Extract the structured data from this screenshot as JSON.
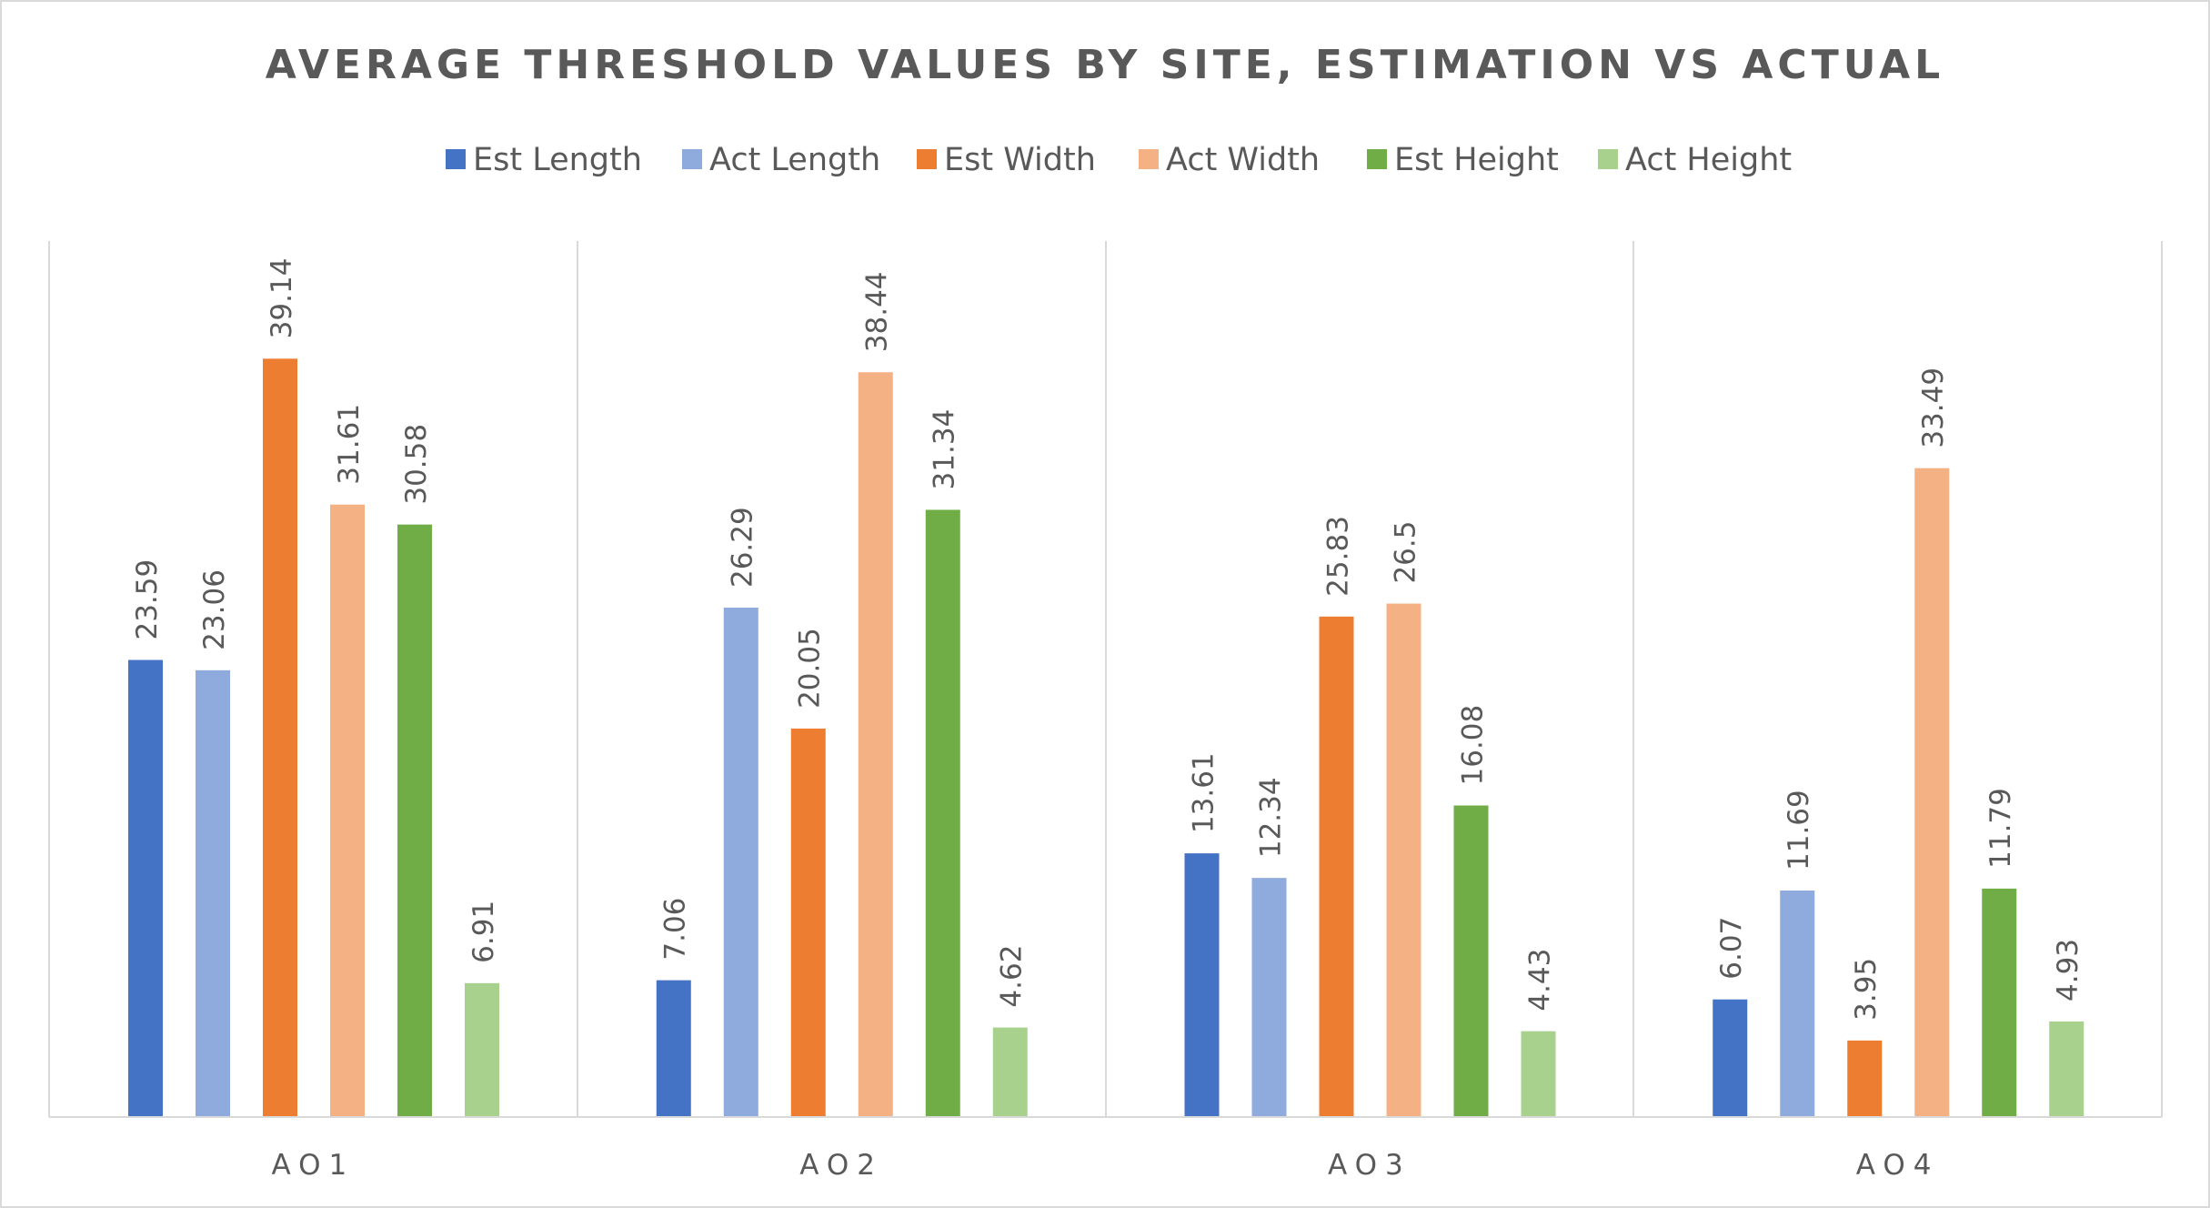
{
  "chart_data": {
    "type": "bar",
    "title": "AVERAGE THRESHOLD VALUES BY SITE, ESTIMATION VS ACTUAL",
    "xlabel": "",
    "ylabel": "",
    "ylim": [
      0,
      42
    ],
    "grid": false,
    "legend_position": "top",
    "categories": [
      "AO1",
      "AO2",
      "AO3",
      "AO4"
    ],
    "series": [
      {
        "name": "Est Length",
        "color": "#4472C4",
        "values": [
          23.59,
          7.06,
          13.61,
          6.07
        ]
      },
      {
        "name": "Act Length",
        "color": "#8FAADC",
        "values": [
          23.06,
          26.29,
          12.34,
          11.69
        ]
      },
      {
        "name": "Est Width",
        "color": "#ED7D31",
        "values": [
          39.14,
          20.05,
          25.83,
          3.95
        ]
      },
      {
        "name": "Act Width",
        "color": "#F4B183",
        "values": [
          31.61,
          38.44,
          26.5,
          33.49
        ]
      },
      {
        "name": "Est Height",
        "color": "#70AD47",
        "values": [
          30.58,
          31.34,
          16.08,
          11.79
        ]
      },
      {
        "name": "Act Height",
        "color": "#A9D18E",
        "values": [
          6.91,
          4.62,
          4.43,
          4.93
        ]
      }
    ],
    "data_labels": [
      [
        "23.59",
        "7.06",
        "13.61",
        "6.07"
      ],
      [
        "23.06",
        "26.29",
        "12.34",
        "11.69"
      ],
      [
        "39.14",
        "20.05",
        "25.83",
        "3.95"
      ],
      [
        "31.61",
        "38.44",
        "26.5",
        "33.49"
      ],
      [
        "30.58",
        "31.34",
        "16.08",
        "11.79"
      ],
      [
        "6.91",
        "4.62",
        "4.43",
        "4.93"
      ]
    ]
  }
}
